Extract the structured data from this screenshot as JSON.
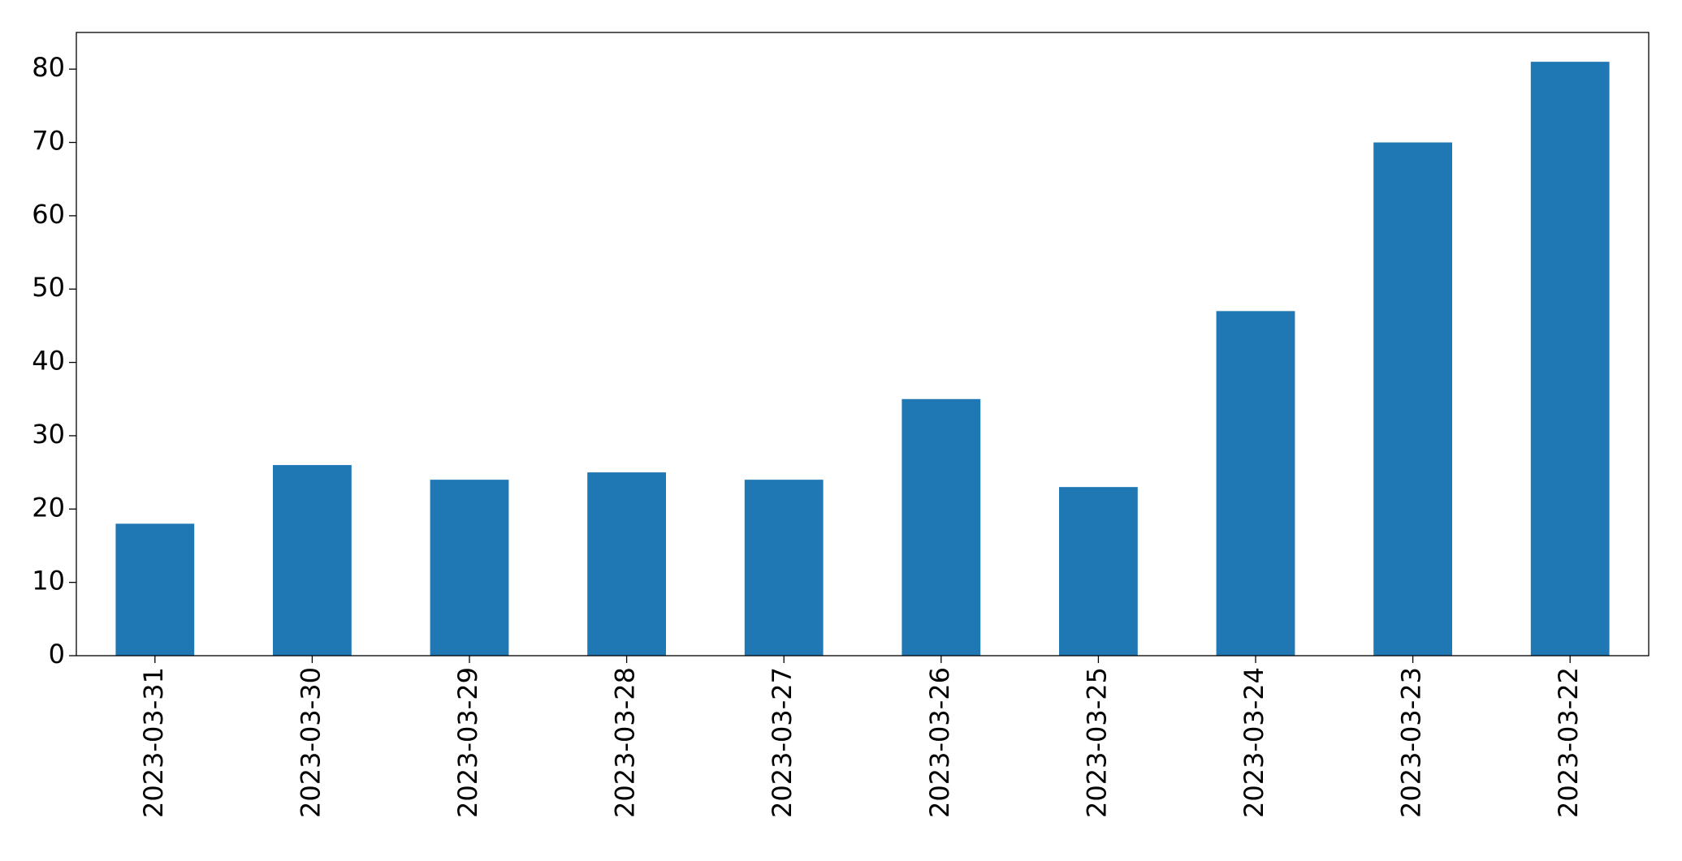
{
  "chart_data": {
    "type": "bar",
    "categories": [
      "2023-03-31",
      "2023-03-30",
      "2023-03-29",
      "2023-03-28",
      "2023-03-27",
      "2023-03-26",
      "2023-03-25",
      "2023-03-24",
      "2023-03-23",
      "2023-03-22"
    ],
    "values": [
      18,
      26,
      24,
      25,
      24,
      35,
      23,
      47,
      70,
      81
    ],
    "color": "#1f77b4",
    "ylim": [
      0,
      85
    ],
    "yticks": [
      0,
      10,
      20,
      30,
      40,
      50,
      60,
      70,
      80
    ],
    "grid": false
  }
}
